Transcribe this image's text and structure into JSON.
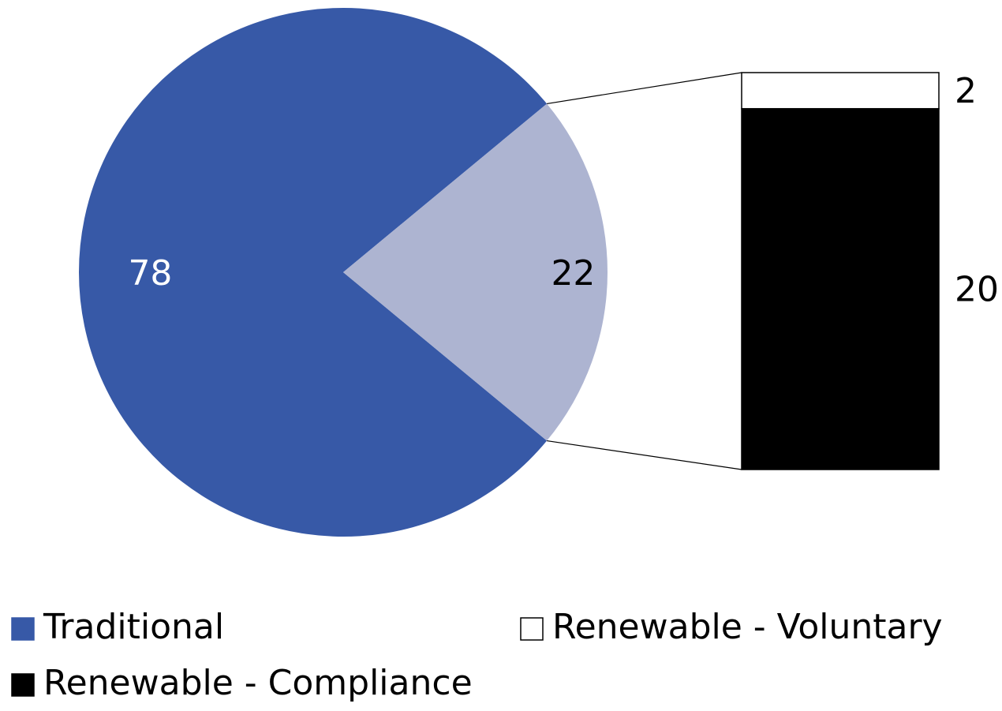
{
  "chart_data": {
    "type": "bar_of_pie",
    "pie": {
      "categories": [
        "Traditional",
        null
      ],
      "values": [
        78,
        22
      ],
      "colors": [
        "#3759a7",
        "#adb4d1"
      ]
    },
    "bar": {
      "series": [
        {
          "name": "Renewable - Voluntary",
          "color": "#ffffff",
          "values": [
            2
          ]
        },
        {
          "name": "Renewable - Compliance",
          "color": "#000000",
          "values": [
            20
          ]
        }
      ]
    },
    "legend": "bottom"
  }
}
